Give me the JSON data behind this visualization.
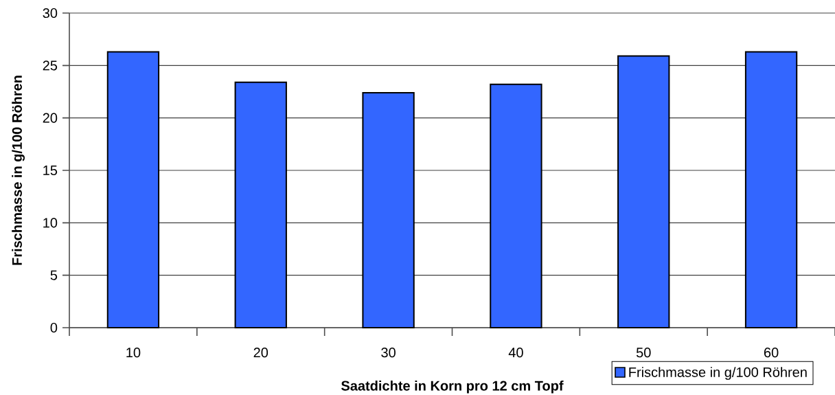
{
  "chart_data": {
    "type": "bar",
    "xlabel": "Saatdichte in Korn pro 12 cm Topf",
    "ylabel": "Frischmasse in g/100 Röhren",
    "categories": [
      "10",
      "20",
      "30",
      "40",
      "50",
      "60"
    ],
    "series": [
      {
        "name": "Frischmasse in g/100 Röhren",
        "color": "#3366ff",
        "values": [
          26.3,
          23.4,
          22.4,
          23.2,
          25.9,
          26.3
        ]
      }
    ],
    "ylim": [
      0,
      30
    ],
    "yticks": [
      0,
      5,
      10,
      15,
      20,
      25,
      30
    ],
    "grid": "y",
    "legend": "bottom right"
  }
}
